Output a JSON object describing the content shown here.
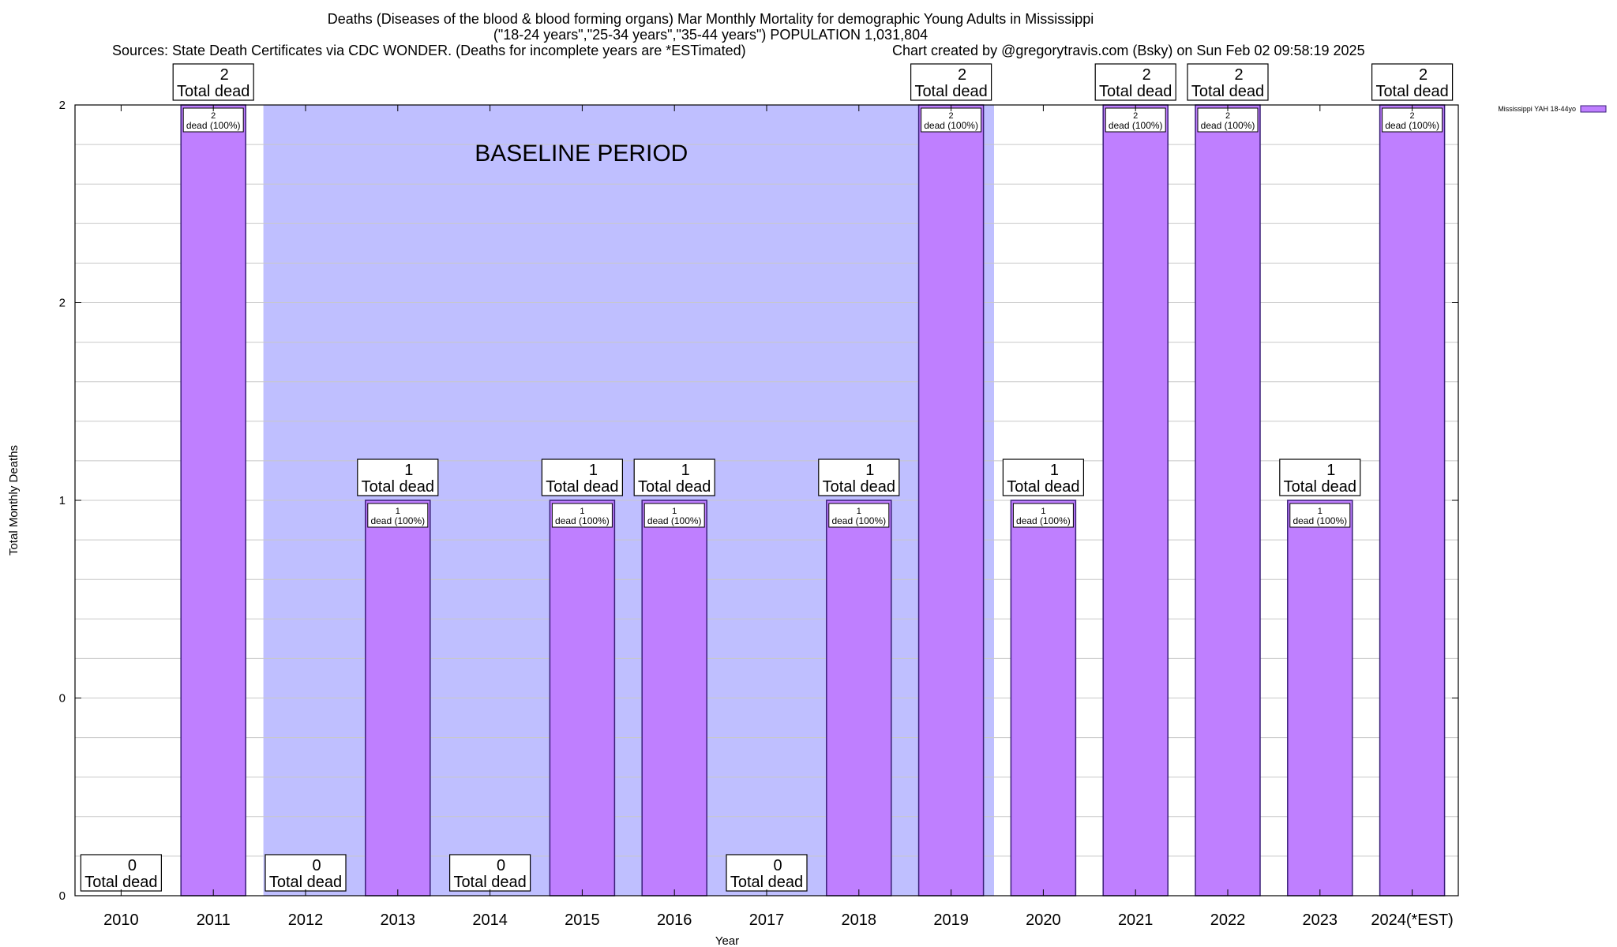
{
  "chart_data": {
    "type": "bar",
    "title": "Deaths (Diseases of the blood & blood forming organs) Mar Monthly Mortality for demographic Young Adults in Mississippi",
    "subtitle": "(\"18-24 years\",\"25-34 years\",\"35-44 years\") POPULATION 1,031,804",
    "source": "Sources: State Death Certificates via CDC WONDER. (Deaths for incomplete years are *ESTimated)",
    "credit": "Chart created by @gregorytravis.com (Bsky) on Sun Feb 02 09:58:19 2025",
    "xlabel": "Year",
    "ylabel": "Total Monthly Deaths",
    "categories": [
      "2010",
      "2011",
      "2012",
      "2013",
      "2014",
      "2015",
      "2016",
      "2017",
      "2018",
      "2019",
      "2020",
      "2021",
      "2022",
      "2023",
      "2024(*EST)"
    ],
    "values": [
      0,
      2,
      0,
      1,
      0,
      1,
      1,
      0,
      1,
      2,
      1,
      2,
      2,
      1,
      2
    ],
    "ylim": [
      0,
      2
    ],
    "ytick_labels": [
      "0",
      "0",
      "1",
      "2",
      "2"
    ],
    "total_label_suffix": "Total dead",
    "inner_label_suffix": "dead (100%)",
    "legend": {
      "label": "Mississippi YAH 18-44yo",
      "position": "top-right",
      "color": "#bf7fff"
    },
    "baseline": {
      "label": "BASELINE PERIOD",
      "start": "2012",
      "end": "2019",
      "color": "#bfbfff"
    },
    "bar_color": "#bf7fff",
    "bar_edge_color": "#3a1f78",
    "grid": true
  }
}
